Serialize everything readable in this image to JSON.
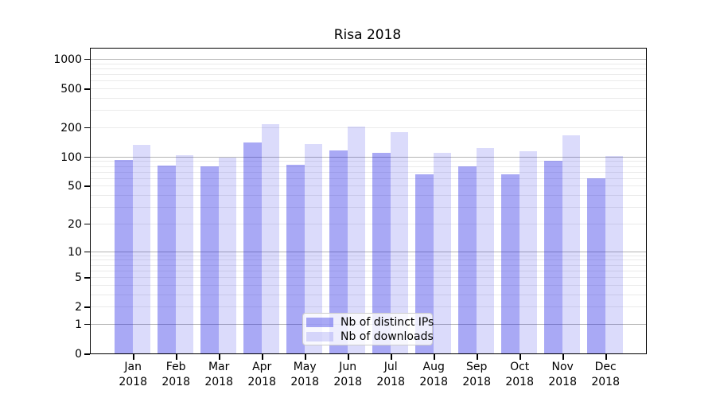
{
  "chart_data": {
    "type": "bar",
    "title": "Risa 2018",
    "categories": [
      "Jan",
      "Feb",
      "Mar",
      "Apr",
      "May",
      "Jun",
      "Jul",
      "Aug",
      "Sep",
      "Oct",
      "Nov",
      "Dec"
    ],
    "year_label": "2018",
    "series": [
      {
        "name": "Nb of distinct IPs",
        "color": "rgba(30,30,230,0.38)",
        "values": [
          93,
          81,
          79,
          141,
          82,
          117,
          110,
          66,
          80,
          66,
          90,
          60
        ]
      },
      {
        "name": "Nb of downloads",
        "color": "rgba(30,30,230,0.16)",
        "values": [
          133,
          103,
          97,
          215,
          136,
          205,
          177,
          110,
          123,
          114,
          165,
          101
        ]
      }
    ],
    "yscale": "log1p",
    "ylim": [
      0,
      1275
    ],
    "y_tick_labels": [
      0,
      1,
      2,
      5,
      10,
      20,
      50,
      100,
      200,
      500,
      1000
    ],
    "grid": {
      "major": [
        1,
        10,
        100,
        1000
      ],
      "minor_base": [
        1,
        10,
        100
      ]
    },
    "legend_position": "lower center",
    "colors": {
      "major_grid": "#b4b4b4",
      "minor_grid": "#eaeaea",
      "axis": "#000000",
      "text": "#000000",
      "background": "#ffffff"
    }
  }
}
